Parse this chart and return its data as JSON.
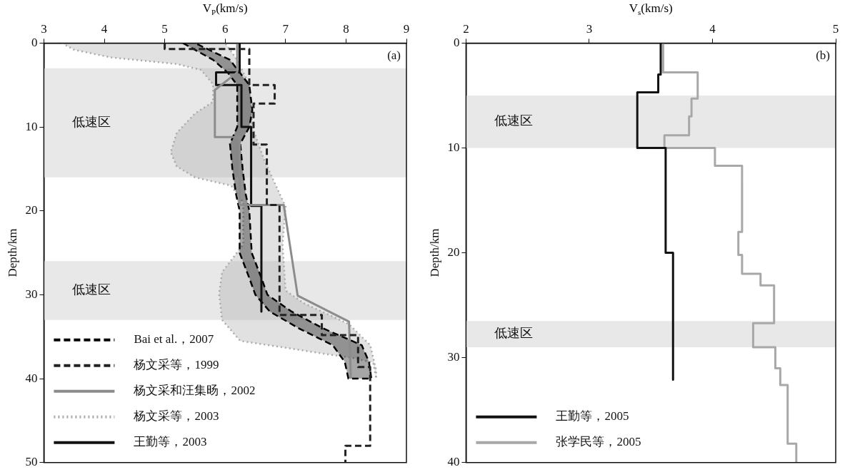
{
  "chart_data": [
    {
      "type": "line",
      "xlabel": "V$_{P}$(km/s)",
      "ylabel": "Depth/km",
      "xlim": [
        3,
        9
      ],
      "xticks": [
        3,
        4,
        5,
        6,
        7,
        8,
        9
      ],
      "ylim": [
        50,
        0
      ],
      "yticks": [
        0,
        10,
        20,
        30,
        40,
        50
      ],
      "legend": "bottom left",
      "annotations": [
        "(a)"
      ],
      "bands": [
        {
          "axis": "y",
          "from": 3,
          "to": 16,
          "label": "低速区",
          "color": "#e8e8e8"
        },
        {
          "axis": "y",
          "from": 26,
          "to": 33,
          "label": "低速区",
          "color": "#e8e8e8"
        }
      ],
      "series": [
        {
          "name": "Bai et al.，2007",
          "type": "area",
          "color": "#000000",
          "line_style": "dashed",
          "x": [
            5.3,
            5.8,
            6.04,
            6.2,
            6.2,
            6.2,
            6.08,
            6.12,
            6.18,
            6.24,
            6.24,
            6.4,
            6.5,
            6.74,
            7.22,
            7.78,
            7.98,
            8.04,
            8.42,
            8.38,
            8.26,
            7.62,
            7.1,
            6.7,
            6.6,
            6.44,
            6.4,
            6.34,
            6.29,
            6.25,
            6.4,
            6.45,
            6.4,
            6.24,
            6.08,
            5.5
          ],
          "values": [
            0,
            2,
            3.5,
            5,
            8,
            10,
            12,
            15,
            18,
            20,
            25,
            28,
            30,
            32,
            34,
            36,
            38,
            40,
            40,
            38,
            36,
            34,
            32,
            30,
            28,
            25,
            20,
            18,
            15,
            12,
            10,
            8,
            5,
            3.5,
            2,
            0
          ]
        },
        {
          "name": "杨文采等，1999",
          "type": "line",
          "color": "#222222",
          "line_style": "dashed",
          "x": [
            5.0,
            5.0,
            6.4,
            6.4,
            6.82,
            6.82,
            6.47,
            6.47,
            6.69,
            6.69,
            6.9,
            6.9,
            7.6,
            7.6,
            8.2,
            8.2,
            8.4,
            8.4,
            7.99,
            7.99
          ],
          "values": [
            0,
            0.7,
            0.7,
            5.0,
            5.0,
            7.2,
            7.2,
            12.1,
            12.1,
            19.3,
            19.3,
            32.4,
            32.4,
            34.8,
            34.8,
            38.6,
            38.6,
            48,
            48,
            50
          ]
        },
        {
          "name": "杨文采和汪集旸，2002",
          "type": "line",
          "color": "#8c8c8c",
          "line_style": "solid",
          "x": [
            6.0,
            6.2,
            6.2,
            5.83,
            5.83,
            6.24,
            6.24,
            6.97,
            7.2,
            8.05,
            8.08
          ],
          "values": [
            0,
            0,
            3.5,
            5.6,
            11.2,
            11.2,
            19.3,
            19.3,
            30.1,
            33.2,
            40
          ]
        },
        {
          "name": "杨文采等，2003",
          "type": "area",
          "color": "#aaaaaa",
          "line_style": "dotted",
          "x": [
            3.3,
            3.5,
            4.1,
            5.2,
            5.6,
            5.8,
            5.8,
            5.5,
            5.2,
            5.1,
            5.2,
            5.5,
            6.1,
            6.3,
            6.3,
            5.95,
            5.9,
            5.95,
            6.25,
            6.9,
            7.7,
            8.1,
            8.45,
            8.5,
            8.5,
            8.4,
            8.05,
            7.3,
            7.0,
            6.95,
            7.0,
            6.65,
            6.45,
            6.4,
            6.2,
            6.0
          ],
          "values": [
            0,
            0.8,
            1.7,
            2.5,
            3.2,
            4.9,
            7,
            8.4,
            10.7,
            13,
            14.7,
            16,
            17,
            19,
            24,
            27.3,
            29.9,
            33,
            35.5,
            36.2,
            37.1,
            37.5,
            38.1,
            40,
            39,
            36,
            33.5,
            31,
            29.5,
            24,
            19.5,
            14,
            10,
            5,
            2,
            0
          ]
        },
        {
          "name": "王勤等，2003",
          "type": "line",
          "color": "#111111",
          "line_style": "solid",
          "x": [
            6.24,
            6.24,
            5.85,
            5.85,
            6.27,
            6.27,
            6.43,
            6.43,
            6.6,
            6.6
          ],
          "values": [
            0,
            3.5,
            3.5,
            5.0,
            5.0,
            10,
            10,
            19.4,
            19.4,
            32
          ]
        }
      ]
    },
    {
      "type": "line",
      "xlabel": "V$_{s}$(km/s)",
      "ylabel": "Depth/km",
      "xlim": [
        2,
        5
      ],
      "xticks": [
        2,
        3,
        4,
        5
      ],
      "ylim": [
        40,
        0
      ],
      "yticks": [
        0,
        10,
        20,
        30,
        40
      ],
      "legend": "bottom left",
      "annotations": [
        "(b)"
      ],
      "bands": [
        {
          "axis": "y",
          "from": 5,
          "to": 10,
          "label": "低速区",
          "color": "#e8e8e8"
        },
        {
          "axis": "y",
          "from": 26.5,
          "to": 29,
          "label": "低速区",
          "color": "#e8e8e8"
        }
      ],
      "series": [
        {
          "name": "王勤等，2005",
          "type": "line",
          "color": "#111111",
          "line_style": "solid",
          "x": [
            3.58,
            3.58,
            3.56,
            3.56,
            3.39,
            3.39,
            3.62,
            3.62,
            3.68,
            3.68
          ],
          "values": [
            0,
            3,
            3,
            4.7,
            4.7,
            10,
            10,
            20,
            20,
            32.1
          ]
        },
        {
          "name": "张学民等，2005",
          "type": "line",
          "color": "#a8a8a8",
          "line_style": "solid",
          "x": [
            3.6,
            3.6,
            3.88,
            3.88,
            3.83,
            3.83,
            3.81,
            3.81,
            3.61,
            3.61,
            4.02,
            4.02,
            4.24,
            4.24,
            4.21,
            4.21,
            4.24,
            4.24,
            4.39,
            4.39,
            4.5,
            4.5,
            4.33,
            4.33,
            4.51,
            4.51,
            4.55,
            4.55,
            4.61,
            4.61,
            4.68,
            4.68
          ],
          "values": [
            0,
            2.8,
            2.8,
            5.3,
            5.3,
            7.0,
            7.0,
            8.8,
            8.8,
            10,
            10,
            11.7,
            11.7,
            18,
            18,
            20.2,
            20.2,
            22,
            22,
            23.1,
            23.1,
            26.7,
            26.7,
            29,
            29,
            31,
            31,
            32.6,
            32.6,
            38.2,
            38.2,
            40
          ]
        }
      ]
    }
  ]
}
